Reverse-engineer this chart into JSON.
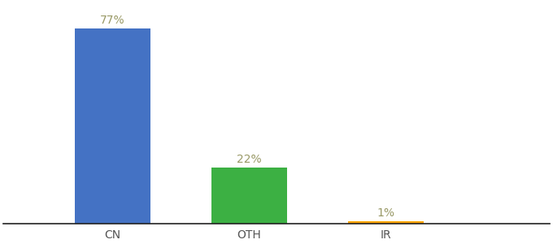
{
  "categories": [
    "CN",
    "OTH",
    "IR"
  ],
  "values": [
    77,
    22,
    1
  ],
  "bar_colors": [
    "#4472C4",
    "#3CB043",
    "#FFA500"
  ],
  "labels": [
    "77%",
    "22%",
    "1%"
  ],
  "background_color": "#ffffff",
  "bar_width": 0.55,
  "xlim": [
    -0.8,
    3.2
  ],
  "ylim": [
    0,
    87
  ],
  "label_fontsize": 10,
  "tick_fontsize": 10,
  "label_color": "#999966",
  "tick_color": "#555555",
  "spine_color": "#222222"
}
